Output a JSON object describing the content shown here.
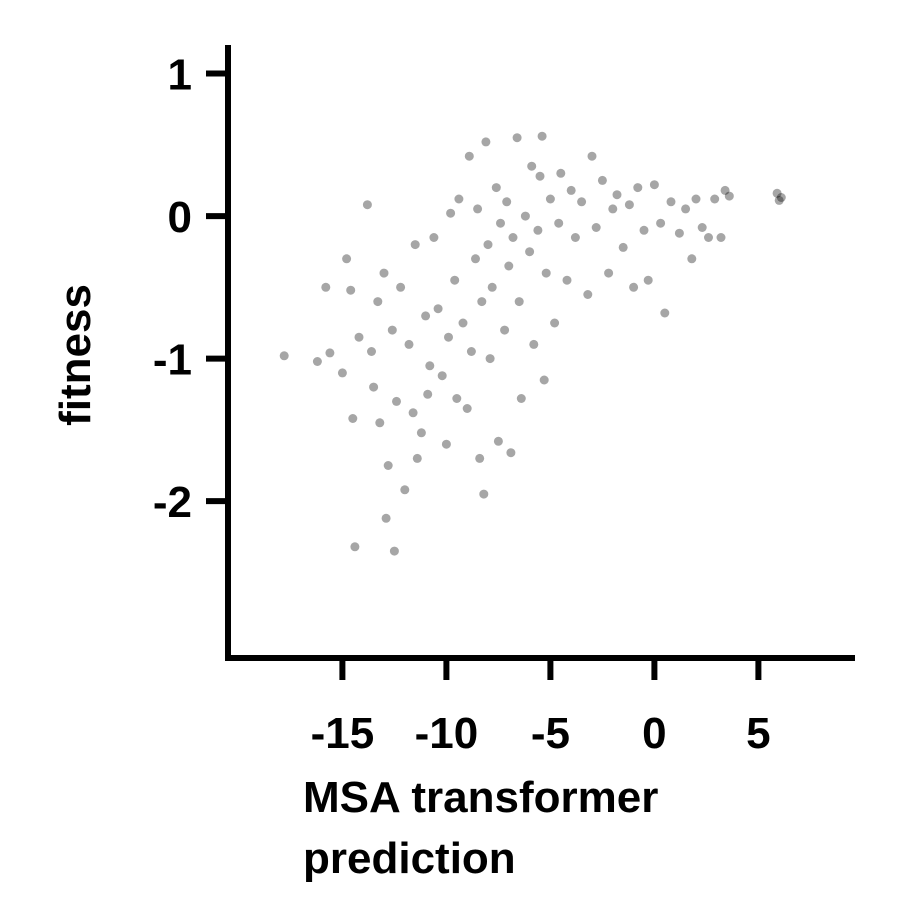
{
  "chart_data": {
    "type": "scatter",
    "xlabel_lines": [
      "MSA transformer",
      "prediction"
    ],
    "ylabel": "fitness",
    "xlim": [
      -20.5,
      9.5
    ],
    "ylim": [
      -3.1,
      1.2
    ],
    "xticks": [
      -15,
      -10,
      -5,
      0,
      5
    ],
    "xtick_labels": [
      "-15",
      "-10",
      "-5",
      "0",
      "5"
    ],
    "yticks": [
      1,
      0,
      -1,
      -2
    ],
    "ytick_labels": [
      "1",
      "0",
      "-1",
      "-2"
    ],
    "grid": false,
    "legend": false,
    "point_color": "#000000",
    "point_opacity": 0.35,
    "points": [
      [
        -17.8,
        -0.98
      ],
      [
        -16.2,
        -1.02
      ],
      [
        -15.8,
        -0.5
      ],
      [
        -15.6,
        -0.96
      ],
      [
        -15.0,
        -1.1
      ],
      [
        -14.8,
        -0.3
      ],
      [
        -14.6,
        -0.52
      ],
      [
        -14.5,
        -1.42
      ],
      [
        -14.4,
        -2.32
      ],
      [
        -14.2,
        -0.85
      ],
      [
        -13.8,
        0.08
      ],
      [
        -13.6,
        -0.95
      ],
      [
        -13.5,
        -1.2
      ],
      [
        -13.3,
        -0.6
      ],
      [
        -13.2,
        -1.45
      ],
      [
        -13.0,
        -0.4
      ],
      [
        -12.9,
        -2.12
      ],
      [
        -12.8,
        -1.75
      ],
      [
        -12.6,
        -0.8
      ],
      [
        -12.5,
        -2.35
      ],
      [
        -12.4,
        -1.3
      ],
      [
        -12.2,
        -0.5
      ],
      [
        -12.0,
        -1.92
      ],
      [
        -11.8,
        -0.9
      ],
      [
        -11.6,
        -1.38
      ],
      [
        -11.5,
        -0.2
      ],
      [
        -11.4,
        -1.7
      ],
      [
        -11.2,
        -1.52
      ],
      [
        -11.0,
        -0.7
      ],
      [
        -10.9,
        -1.25
      ],
      [
        -10.8,
        -1.05
      ],
      [
        -10.6,
        -0.15
      ],
      [
        -10.4,
        -0.65
      ],
      [
        -10.2,
        -1.12
      ],
      [
        -10.0,
        -1.6
      ],
      [
        -9.9,
        -0.85
      ],
      [
        -9.8,
        0.02
      ],
      [
        -9.6,
        -0.45
      ],
      [
        -9.5,
        -1.28
      ],
      [
        -9.4,
        0.12
      ],
      [
        -9.2,
        -0.75
      ],
      [
        -9.0,
        -1.35
      ],
      [
        -8.9,
        0.42
      ],
      [
        -8.8,
        -0.95
      ],
      [
        -8.6,
        -0.3
      ],
      [
        -8.5,
        0.05
      ],
      [
        -8.4,
        -1.7
      ],
      [
        -8.3,
        -0.6
      ],
      [
        -8.2,
        -1.95
      ],
      [
        -8.1,
        0.52
      ],
      [
        -8.0,
        -0.2
      ],
      [
        -7.9,
        -1.0
      ],
      [
        -7.8,
        -0.5
      ],
      [
        -7.6,
        0.2
      ],
      [
        -7.5,
        -1.58
      ],
      [
        -7.4,
        -0.05
      ],
      [
        -7.2,
        -0.8
      ],
      [
        -7.1,
        0.1
      ],
      [
        -7.0,
        -0.35
      ],
      [
        -6.9,
        -1.66
      ],
      [
        -6.8,
        -0.15
      ],
      [
        -6.6,
        0.55
      ],
      [
        -6.5,
        -0.6
      ],
      [
        -6.4,
        -1.28
      ],
      [
        -6.2,
        0.0
      ],
      [
        -6.0,
        -0.25
      ],
      [
        -5.9,
        0.35
      ],
      [
        -5.8,
        -0.9
      ],
      [
        -5.6,
        -0.1
      ],
      [
        -5.5,
        0.28
      ],
      [
        -5.4,
        0.56
      ],
      [
        -5.3,
        -1.15
      ],
      [
        -5.2,
        -0.4
      ],
      [
        -5.0,
        0.12
      ],
      [
        -4.8,
        -0.75
      ],
      [
        -4.6,
        -0.05
      ],
      [
        -4.5,
        0.3
      ],
      [
        -4.2,
        -0.45
      ],
      [
        -4.0,
        0.18
      ],
      [
        -3.8,
        -0.15
      ],
      [
        -3.5,
        0.1
      ],
      [
        -3.2,
        -0.55
      ],
      [
        -3.0,
        0.42
      ],
      [
        -2.8,
        -0.08
      ],
      [
        -2.5,
        0.25
      ],
      [
        -2.2,
        -0.4
      ],
      [
        -2.0,
        0.05
      ],
      [
        -1.8,
        0.15
      ],
      [
        -1.5,
        -0.22
      ],
      [
        -1.2,
        0.08
      ],
      [
        -1.0,
        -0.5
      ],
      [
        -0.8,
        0.2
      ],
      [
        -0.5,
        -0.1
      ],
      [
        -0.3,
        -0.45
      ],
      [
        0.0,
        0.22
      ],
      [
        0.3,
        -0.05
      ],
      [
        0.5,
        -0.68
      ],
      [
        0.8,
        0.1
      ],
      [
        1.2,
        -0.12
      ],
      [
        1.5,
        0.05
      ],
      [
        1.8,
        -0.3
      ],
      [
        2.0,
        0.12
      ],
      [
        2.3,
        -0.08
      ],
      [
        2.6,
        -0.15
      ],
      [
        2.9,
        0.12
      ],
      [
        3.2,
        -0.15
      ],
      [
        3.4,
        0.18
      ],
      [
        3.6,
        0.14
      ],
      [
        5.9,
        0.16
      ],
      [
        6.1,
        0.13
      ],
      [
        6.0,
        0.11
      ]
    ]
  }
}
